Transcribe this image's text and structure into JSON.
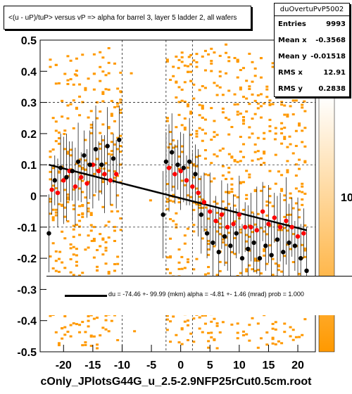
{
  "title": "<(u - uP)/tuP> versus   vP => alpha for barrel 3, layer 5 ladder 2, all wafers",
  "stats": {
    "name": "duOvertuPvP5002",
    "rows": [
      {
        "label": "Entries",
        "value": "9993"
      },
      {
        "label": "Mean x",
        "value": "-0.3568"
      },
      {
        "label": "Mean y",
        "value": "-0.01518"
      },
      {
        "label": "RMS x",
        "value": "12.91"
      },
      {
        "label": "RMS y",
        "value": "0.2838"
      }
    ]
  },
  "fit_text": "du =  -74.46 +- 99.99 (mkm) alpha =   -4.81 +-  1.46 (mrad) prob = 1.000",
  "footer": "cOnly_JPlotsG44G_u_2.5-2.9NFP25rCut0.5cm.root",
  "colz_labels": [
    "10",
    "10"
  ],
  "colors": {
    "fill": "#ff9900",
    "red_points": "#ff0000",
    "black_points": "#000000",
    "palette_top": "#ffffff",
    "palette_bottom": "#ff9900"
  },
  "chart_data": {
    "type": "scatter",
    "xlim": [
      -24,
      23
    ],
    "ylim": [
      -0.5,
      0.5
    ],
    "x_ticks": [
      -20,
      -15,
      -10,
      -5,
      0,
      5,
      10,
      15,
      20
    ],
    "y_ticks": [
      -0.5,
      -0.4,
      -0.3,
      -0.2,
      -0.1,
      0,
      0.1,
      0.2,
      0.3,
      0.4,
      0.5
    ],
    "x_tick_labels": [
      "-20",
      "-15",
      "-10",
      "-5",
      "0",
      "5",
      "10",
      "15",
      "20"
    ],
    "y_tick_labels": [
      "-0.5",
      "-0.4",
      "-0.3",
      "-0.2",
      "-0.1",
      "0",
      "0.1",
      "0.2",
      "0.3",
      "0.4",
      "0.5"
    ],
    "fit_line": {
      "x": [
        -22.5,
        21.5
      ],
      "y": [
        0.1,
        -0.11
      ]
    },
    "band_ranges": [
      [
        -22.5,
        -10
      ],
      [
        -2.5,
        21.5
      ]
    ],
    "series": [
      {
        "color": "#ff0000",
        "x": [
          -22,
          -21,
          -20,
          -19,
          -18,
          -17,
          -16,
          -15,
          -14,
          -13,
          -12,
          -11,
          -2,
          -1,
          0,
          1,
          2,
          3,
          4,
          5,
          6,
          7,
          8,
          9,
          10,
          11,
          12,
          13,
          14,
          15,
          16,
          17,
          18,
          19,
          20,
          21
        ],
        "y": [
          0.02,
          0.01,
          0.05,
          0.08,
          0.03,
          0.06,
          0.04,
          0.1,
          0.08,
          0.07,
          0.05,
          0.07,
          0.09,
          0.07,
          0.08,
          0.05,
          0.03,
          0.01,
          -0.02,
          -0.05,
          -0.08,
          -0.06,
          -0.1,
          -0.09,
          -0.06,
          -0.1,
          -0.1,
          -0.11,
          -0.05,
          -0.09,
          -0.07,
          -0.1,
          -0.08,
          -0.1,
          -0.13,
          -0.12
        ]
      },
      {
        "color": "#000000",
        "x": [
          -22.5,
          -21.5,
          -20.5,
          -19.5,
          -18.5,
          -17.5,
          -16.5,
          -15.5,
          -14.5,
          -13.5,
          -12.5,
          -11.5,
          -10.5,
          -3,
          -2.5,
          -1.5,
          -0.5,
          0.5,
          1.5,
          2.5,
          3.5,
          4.5,
          5.5,
          6.5,
          7.5,
          8.5,
          9.5,
          10.5,
          11.5,
          12.5,
          13.5,
          14.5,
          15.5,
          16.5,
          17.5,
          18.5,
          19.5,
          20.5,
          21.5
        ],
        "y": [
          -0.12,
          0.05,
          0.09,
          0.06,
          0.08,
          0.11,
          0.13,
          0.1,
          0.15,
          0.1,
          0.16,
          0.12,
          0.18,
          -0.06,
          0.11,
          0.14,
          0.1,
          0.09,
          0.11,
          0.07,
          -0.06,
          -0.12,
          -0.15,
          -0.18,
          -0.13,
          -0.16,
          -0.12,
          -0.2,
          -0.17,
          -0.15,
          -0.2,
          -0.16,
          -0.19,
          -0.14,
          -0.18,
          -0.15,
          -0.16,
          -0.2,
          -0.24
        ]
      }
    ]
  }
}
